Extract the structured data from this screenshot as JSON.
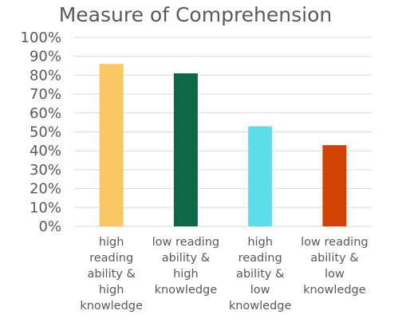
{
  "chart_data": {
    "type": "bar",
    "title": "Measure of Comprehension",
    "xlabel": "",
    "ylabel": "",
    "ylim": [
      0,
      100
    ],
    "y_ticks": [
      "0%",
      "10%",
      "20%",
      "30%",
      "40%",
      "50%",
      "60%",
      "70%",
      "80%",
      "90%",
      "100%"
    ],
    "categories": [
      [
        "high",
        "reading",
        "ability &",
        "high",
        "knowledge"
      ],
      [
        "low reading",
        "ability &",
        "high",
        "knowledge"
      ],
      [
        "high",
        "reading",
        "ability &",
        "low",
        "knowledge"
      ],
      [
        "low reading",
        "ability &",
        "low",
        "knowledge"
      ]
    ],
    "values": [
      86,
      81,
      53,
      43
    ],
    "colors": [
      "#F9C764",
      "#0E6845",
      "#5EDDEB",
      "#D24203"
    ],
    "grid": true,
    "gridline_color": "#D9D9D9",
    "text_color": "#595959"
  }
}
